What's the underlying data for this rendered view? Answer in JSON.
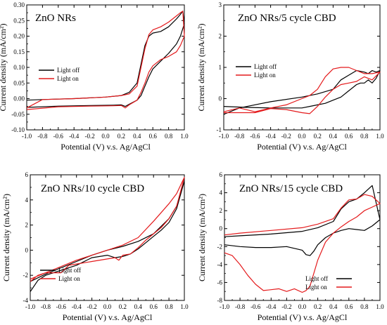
{
  "chart_data": [
    {
      "type": "line",
      "title": "ZnO NRs",
      "xlabel": "Potential (V) v.s. Ag/AgCl",
      "ylabel": "Current density (mA/cm²)",
      "xlim": [
        -1.0,
        1.0
      ],
      "ylim": [
        -0.1,
        0.3
      ],
      "xticks": [
        "-1.0",
        "-0.8",
        "-0.6",
        "-0.4",
        "-0.2",
        "0.0",
        "0.2",
        "0.4",
        "0.6",
        "0.8",
        "1.0"
      ],
      "yticks": [
        "-0.10",
        "-0.05",
        "0.00",
        "0.05",
        "0.10",
        "0.15",
        "0.20",
        "0.25",
        "0.30"
      ],
      "legend_position": "middle-left",
      "series": [
        {
          "name": "Light off",
          "color": "#000000",
          "x": [
            -1.0,
            -0.6,
            -0.2,
            0.1,
            0.2,
            0.25,
            0.3,
            0.4,
            0.45,
            0.5,
            0.55,
            0.6,
            0.7,
            0.8,
            0.9,
            0.95,
            1.0,
            0.98,
            0.95,
            0.9,
            0.8,
            0.7,
            0.6,
            0.55,
            0.5,
            0.45,
            0.4,
            0.3,
            0.2,
            0.0,
            -0.4,
            -0.8,
            -1.0
          ],
          "y": [
            -0.028,
            -0.024,
            -0.022,
            -0.021,
            -0.02,
            -0.025,
            -0.018,
            -0.005,
            0.01,
            0.04,
            0.07,
            0.095,
            0.12,
            0.145,
            0.175,
            0.2,
            0.24,
            0.28,
            0.27,
            0.255,
            0.23,
            0.215,
            0.21,
            0.2,
            0.17,
            0.11,
            0.05,
            0.02,
            0.01,
            0.005,
            0.0,
            -0.003,
            -0.005
          ]
        },
        {
          "name": "Light on",
          "color": "#e41a1c",
          "x": [
            -1.0,
            -0.6,
            -0.2,
            0.1,
            0.2,
            0.25,
            0.3,
            0.4,
            0.45,
            0.5,
            0.55,
            0.6,
            0.7,
            0.8,
            0.9,
            0.95,
            1.0,
            0.98,
            0.95,
            0.9,
            0.8,
            0.7,
            0.6,
            0.55,
            0.5,
            0.45,
            0.4,
            0.3,
            0.2,
            0.0,
            -0.4,
            -0.8,
            -1.0
          ],
          "y": [
            -0.035,
            -0.026,
            -0.024,
            -0.023,
            -0.022,
            -0.03,
            -0.02,
            -0.005,
            0.02,
            0.05,
            0.085,
            0.105,
            0.125,
            0.135,
            0.15,
            0.17,
            0.2,
            0.28,
            0.275,
            0.265,
            0.245,
            0.23,
            0.22,
            0.205,
            0.16,
            0.1,
            0.04,
            0.015,
            0.01,
            0.005,
            0.0,
            -0.003,
            -0.03
          ]
        }
      ]
    },
    {
      "type": "line",
      "title": "ZnO NRs/5 cycle CBD",
      "xlabel": "Potential (V) v.s. Ag/AgCl",
      "ylabel": "Current density (mA/cm²)",
      "xlim": [
        -1.0,
        1.0
      ],
      "ylim": [
        -1,
        3
      ],
      "xticks": [
        "-1.0",
        "-0.8",
        "-0.6",
        "-0.4",
        "-0.2",
        "0.0",
        "0.2",
        "0.4",
        "0.6",
        "0.8",
        "1.0"
      ],
      "yticks": [
        "-1",
        "0",
        "1",
        "2",
        "3"
      ],
      "legend_position": "middle-left",
      "series": [
        {
          "name": "Light off",
          "color": "#000000",
          "x": [
            -1.0,
            -0.7,
            -0.4,
            -0.2,
            0.0,
            0.1,
            0.2,
            0.3,
            0.4,
            0.5,
            0.6,
            0.7,
            0.75,
            0.8,
            0.85,
            0.9,
            0.95,
            1.0,
            0.95,
            0.9,
            0.85,
            0.8,
            0.7,
            0.6,
            0.5,
            0.4,
            0.2,
            0.0,
            -0.4,
            -0.8,
            -1.0
          ],
          "y": [
            -0.25,
            -0.28,
            -0.3,
            -0.3,
            -0.3,
            -0.25,
            -0.2,
            -0.15,
            -0.05,
            0.05,
            0.25,
            0.45,
            0.5,
            0.5,
            0.6,
            0.5,
            0.65,
            0.9,
            0.85,
            0.9,
            0.8,
            0.85,
            0.9,
            0.75,
            0.6,
            0.3,
            0.15,
            0.05,
            -0.1,
            -0.3,
            -0.5
          ]
        },
        {
          "name": "Light on",
          "color": "#e41a1c",
          "x": [
            -1.0,
            -0.6,
            -0.4,
            -0.2,
            0.0,
            0.1,
            0.2,
            0.3,
            0.4,
            0.5,
            0.6,
            0.7,
            0.8,
            0.9,
            1.0,
            0.9,
            0.8,
            0.7,
            0.6,
            0.5,
            0.4,
            0.3,
            0.2,
            0.1,
            0.0,
            -0.2,
            -0.4,
            -0.6,
            -0.8,
            -1.0
          ],
          "y": [
            -0.45,
            -0.45,
            -0.32,
            -0.35,
            -0.45,
            -0.48,
            -0.25,
            0.05,
            0.3,
            0.45,
            0.5,
            0.55,
            0.7,
            0.6,
            0.85,
            0.8,
            0.8,
            0.9,
            1.0,
            1.0,
            0.95,
            0.7,
            0.3,
            0.1,
            0.0,
            -0.2,
            -0.3,
            -0.42,
            -0.3,
            -0.42
          ]
        }
      ]
    },
    {
      "type": "line",
      "title": "ZnO NRs/10 cycle CBD",
      "xlabel": "Potential (V) v.s. Ag/AgCl",
      "ylabel": "Current density (mA/cm²)",
      "xlim": [
        -1.0,
        1.0
      ],
      "ylim": [
        -4,
        6
      ],
      "xticks": [
        "-1.0",
        "-0.8",
        "-0.6",
        "-0.4",
        "-0.2",
        "0.0",
        "0.2",
        "0.4",
        "0.6",
        "0.8",
        "1.0"
      ],
      "yticks": [
        "-4",
        "-2",
        "0",
        "2",
        "4",
        "6"
      ],
      "legend_position": "middle-right",
      "series": [
        {
          "name": "Light off",
          "color": "#000000",
          "x": [
            -1.0,
            -0.9,
            -0.8,
            -0.6,
            -0.4,
            -0.2,
            0.0,
            0.1,
            0.2,
            0.3,
            0.4,
            0.5,
            0.6,
            0.7,
            0.8,
            0.9,
            1.0,
            0.9,
            0.8,
            0.6,
            0.4,
            0.2,
            0.0,
            -0.2,
            -0.4,
            -0.6,
            -0.8,
            -1.0
          ],
          "y": [
            -3.3,
            -2.4,
            -2.0,
            -1.6,
            -1.2,
            -0.6,
            -0.4,
            -0.6,
            -0.5,
            -0.3,
            0.1,
            0.6,
            1.1,
            1.6,
            2.2,
            3.3,
            5.5,
            3.5,
            2.5,
            1.3,
            0.7,
            0.3,
            0.0,
            -0.4,
            -0.9,
            -1.4,
            -1.9,
            -2.5
          ]
        },
        {
          "name": "Light on",
          "color": "#e41a1c",
          "x": [
            -1.0,
            -0.9,
            -0.8,
            -0.6,
            -0.5,
            -0.4,
            -0.2,
            0.0,
            0.1,
            0.15,
            0.2,
            0.3,
            0.4,
            0.5,
            0.6,
            0.7,
            0.8,
            0.9,
            1.0,
            0.9,
            0.8,
            0.7,
            0.6,
            0.4,
            0.2,
            0.0,
            -0.2,
            -0.4,
            -0.6,
            -0.8,
            -1.0
          ],
          "y": [
            -2.5,
            -2.0,
            -1.8,
            -1.8,
            -1.2,
            -1.1,
            -0.9,
            -0.7,
            -0.6,
            -0.8,
            -0.4,
            -0.3,
            0.2,
            0.8,
            1.3,
            1.8,
            2.5,
            3.5,
            5.8,
            4.5,
            3.7,
            3.0,
            2.3,
            1.0,
            0.4,
            0.0,
            -0.4,
            -0.8,
            -1.3,
            -1.8,
            -2.3
          ]
        }
      ]
    },
    {
      "type": "line",
      "title": "ZnO NRs/15 cycle CBD",
      "xlabel": "Potential (V) v.s. Ag/AgCl",
      "ylabel": "Current density (mA/cm²)",
      "xlim": [
        -1.0,
        1.0
      ],
      "ylim": [
        -8,
        6
      ],
      "xticks": [
        "-1.0",
        "-0.8",
        "-0.6",
        "-0.4",
        "-0.2",
        "0.0",
        "0.2",
        "0.4",
        "0.6",
        "0.8",
        "1.0"
      ],
      "yticks": [
        "-8",
        "-6",
        "-4",
        "-2",
        "0",
        "2",
        "4",
        "6"
      ],
      "legend_position": "bottom-right",
      "series": [
        {
          "name": "Light off",
          "color": "#000000",
          "x": [
            -1.0,
            -0.8,
            -0.6,
            -0.4,
            -0.2,
            0.0,
            0.05,
            0.1,
            0.15,
            0.2,
            0.3,
            0.4,
            0.5,
            0.6,
            0.7,
            0.8,
            0.9,
            1.0,
            0.9,
            0.8,
            0.7,
            0.6,
            0.5,
            0.4,
            0.2,
            0.0,
            -0.4,
            -0.8,
            -1.0
          ],
          "y": [
            -1.8,
            -2.0,
            -2.1,
            -2.1,
            -2.0,
            -2.4,
            -2.9,
            -3.0,
            -2.5,
            -1.8,
            -1.0,
            -0.5,
            -0.2,
            0.0,
            -0.1,
            -0.2,
            0.3,
            1.0,
            4.8,
            4.0,
            3.3,
            3.0,
            2.2,
            0.8,
            0.1,
            -0.3,
            -0.6,
            -0.8,
            -0.9
          ]
        },
        {
          "name": "Light on",
          "color": "#e41a1c",
          "x": [
            -1.0,
            -0.9,
            -0.8,
            -0.7,
            -0.6,
            -0.5,
            -0.4,
            -0.3,
            -0.2,
            -0.1,
            0.0,
            0.05,
            0.1,
            0.2,
            0.3,
            0.4,
            0.5,
            0.6,
            0.7,
            0.8,
            0.9,
            1.0,
            0.9,
            0.8,
            0.7,
            0.6,
            0.5,
            0.4,
            0.2,
            0.0,
            -0.4,
            -0.8,
            -1.0
          ],
          "y": [
            -2.7,
            -3.0,
            -4.0,
            -5.2,
            -6.2,
            -6.9,
            -6.8,
            -6.7,
            -7.0,
            -6.7,
            -7.1,
            -6.9,
            -6.4,
            -3.5,
            -1.5,
            -0.5,
            0.2,
            0.8,
            1.3,
            2.0,
            2.4,
            2.8,
            3.6,
            3.8,
            3.3,
            3.2,
            2.3,
            1.1,
            0.5,
            0.1,
            -0.2,
            -0.5,
            -0.7
          ]
        }
      ]
    }
  ]
}
